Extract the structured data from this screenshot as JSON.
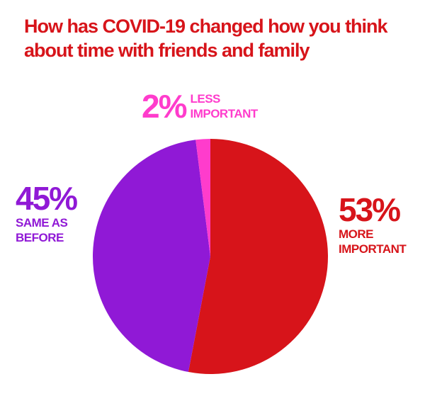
{
  "chart_data": {
    "type": "pie",
    "title": "How has COVID-19 changed how you think about time with friends and family",
    "categories": [
      "MORE IMPORTANT",
      "SAME AS BEFORE",
      "LESS IMPORTANT"
    ],
    "values": [
      53,
      45,
      2
    ],
    "value_labels": [
      "53%",
      "45%",
      "2%"
    ],
    "colors": [
      "#d7141a",
      "#9019d6",
      "#ff3ccc"
    ]
  }
}
